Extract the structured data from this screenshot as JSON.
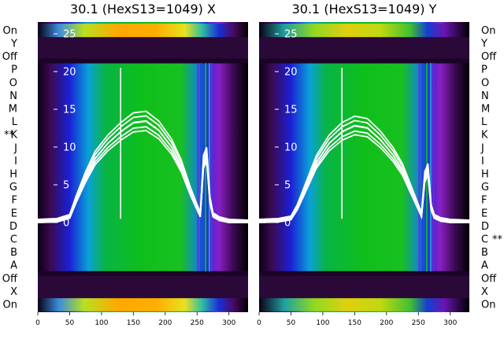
{
  "chart_data": [
    {
      "type": "heatmap",
      "title": "30.1 (HexS13=1049) X",
      "xlim": [
        0,
        330
      ],
      "x_ticks": [
        0,
        50,
        100,
        150,
        200,
        250,
        300
      ],
      "inner_y_ticks": [
        0,
        5,
        10,
        15,
        20,
        25
      ],
      "row_labels": [
        "On",
        "X",
        "Off",
        "A",
        "B",
        "C",
        "D",
        "E",
        "F",
        "G",
        "H",
        "I",
        "J",
        "K",
        "L",
        "M",
        "N",
        "O",
        "P",
        "Off",
        "Y",
        "On"
      ],
      "marked_row": "K",
      "marker_text": "**",
      "marker_side": "left",
      "profile_x": [
        0,
        30,
        50,
        60,
        75,
        90,
        110,
        130,
        150,
        170,
        190,
        210,
        225,
        240,
        250,
        255,
        260,
        265,
        270,
        275,
        285,
        300,
        330
      ],
      "profile_y": [
        0.2,
        0.3,
        0.8,
        3,
        6,
        8.5,
        10.5,
        12,
        13.2,
        13.4,
        12.2,
        10,
        7.5,
        4,
        2,
        1,
        8,
        9,
        3,
        1,
        0.5,
        0.2,
        0.1
      ]
    },
    {
      "type": "heatmap",
      "title": "30.1 (HexS13=1049) Y",
      "xlim": [
        0,
        330
      ],
      "x_ticks": [
        0,
        50,
        100,
        150,
        200,
        250,
        300
      ],
      "inner_y_ticks": [
        0,
        5,
        10,
        15,
        20,
        25
      ],
      "row_labels": [
        "On",
        "X",
        "Off",
        "A",
        "B",
        "C",
        "D",
        "E",
        "F",
        "G",
        "H",
        "I",
        "J",
        "K",
        "L",
        "M",
        "N",
        "O",
        "P",
        "Off",
        "Y",
        "On"
      ],
      "marked_row": "C",
      "marker_text": "**",
      "marker_side": "right",
      "profile_x": [
        0,
        30,
        50,
        60,
        75,
        90,
        110,
        130,
        150,
        170,
        190,
        210,
        225,
        240,
        250,
        255,
        260,
        265,
        270,
        275,
        285,
        300,
        330
      ],
      "profile_y": [
        0.2,
        0.3,
        0.6,
        2,
        5,
        8,
        10.5,
        12,
        12.8,
        12.5,
        11,
        9,
        7,
        4,
        2,
        1,
        6,
        7,
        2,
        0.8,
        0.4,
        0.2,
        0.1
      ]
    }
  ]
}
